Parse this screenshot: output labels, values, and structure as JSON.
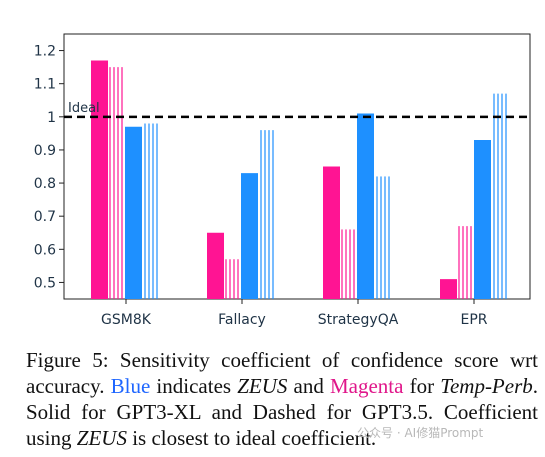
{
  "chart_data": {
    "type": "bar",
    "categories": [
      "GSM8K",
      "Fallacy",
      "StrategyQA",
      "EPR"
    ],
    "ylim": [
      0.45,
      1.25
    ],
    "yticks": [
      0.5,
      0.6,
      0.7,
      0.8,
      0.9,
      1,
      1.1,
      1.2
    ],
    "ytick_labels": [
      "0.5",
      "0.6",
      "0.7",
      "0.8",
      "0.9",
      "1",
      "1.1",
      "1.2"
    ],
    "reference_line": {
      "value": 1.0,
      "label": "Ideal",
      "style": "dashed",
      "color": "#000000"
    },
    "series": [
      {
        "key": "temp_perb_gpt3xl",
        "style": "solid",
        "color": "#ff1493",
        "values": [
          1.17,
          0.65,
          0.85,
          0.51
        ]
      },
      {
        "key": "temp_perb_gpt35",
        "style": "dashed",
        "color": "#ff1493",
        "values": [
          1.15,
          0.57,
          0.66,
          0.67
        ]
      },
      {
        "key": "zeus_gpt3xl",
        "style": "solid",
        "color": "#1e90ff",
        "values": [
          0.97,
          0.83,
          1.01,
          0.93
        ]
      },
      {
        "key": "zeus_gpt35",
        "style": "dashed",
        "color": "#1e90ff",
        "values": [
          0.98,
          0.96,
          0.82,
          1.07
        ]
      }
    ],
    "title": "",
    "xlabel": "",
    "ylabel": ""
  },
  "caption": {
    "part1": "Figure 5: Sensitivity coefficient of confidence score wrt accuracy. ",
    "blue_word": "Blue",
    "part2": " indicates ",
    "zeus1": "ZEUS",
    "part3": " and ",
    "magenta_word": "Magenta",
    "part4": " for ",
    "temp_perb": "Temp-Perb",
    "part5": ". Solid for GPT3-XL and Dashed for GPT3.5. Coefficient using ",
    "zeus2": "ZEUS",
    "part6": " is closest to ideal coefficient."
  },
  "watermark": "公众号 · AI修猫Prompt"
}
